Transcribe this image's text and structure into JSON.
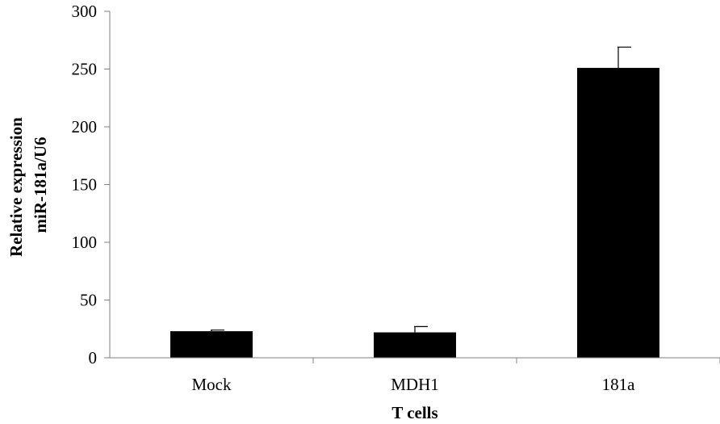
{
  "chart_data": {
    "type": "bar",
    "categories": [
      "Mock",
      "MDH1",
      "181a"
    ],
    "values": [
      23,
      22,
      251
    ],
    "errors": [
      1,
      5,
      18
    ],
    "xlabel": "T cells",
    "ylabel_lines": [
      "Relative expression",
      "miR-181a/U6"
    ],
    "ylim": [
      0,
      300
    ],
    "yticks": [
      0,
      50,
      100,
      150,
      200,
      250,
      300
    ],
    "grid": false,
    "legend": "none",
    "bar_color": "#000000",
    "axis_color": "#808080"
  }
}
